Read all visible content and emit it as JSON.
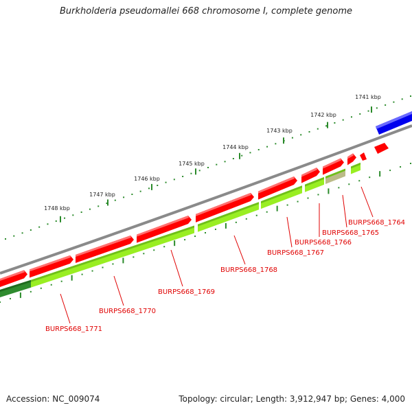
{
  "title": "Burkholderia pseudomallei 668 chromosome I, complete genome",
  "footer": {
    "accession": "Accession: NC_009074",
    "summary": "Topology: circular; Length: 3,912,947 bp; Genes: 4,000"
  },
  "ruler": {
    "ticks": [
      "1741 kbp",
      "1742 kbp",
      "1743 kbp",
      "1744 kbp",
      "1745 kbp",
      "1746 kbp",
      "1747 kbp",
      "1748 kbp"
    ]
  },
  "colors": {
    "backbone": "#8a8a8a",
    "cds": "#ff0000",
    "gene": "#99ee22",
    "gene_dark": "#2e8b2e",
    "blue_feature": "#0000ee",
    "misc": "#bbbb88",
    "ruler": "#2a8a2a",
    "label": "#e00000"
  },
  "genes": [
    {
      "name": "BURPS668_1764"
    },
    {
      "name": "BURPS668_1765"
    },
    {
      "name": "BURPS668_1766"
    },
    {
      "name": "BURPS668_1767"
    },
    {
      "name": "BURPS668_1768"
    },
    {
      "name": "BURPS668_1769"
    },
    {
      "name": "BURPS668_1770"
    },
    {
      "name": "BURPS668_1771"
    }
  ]
}
